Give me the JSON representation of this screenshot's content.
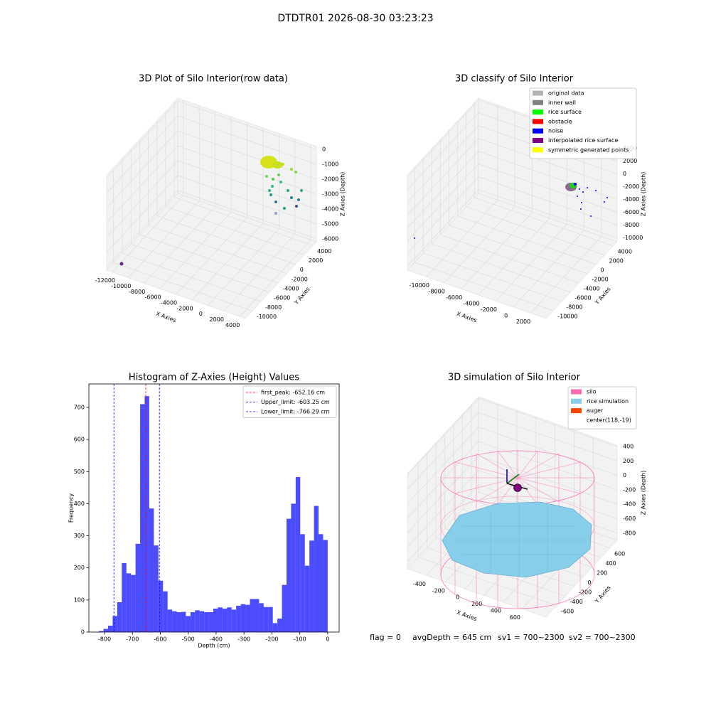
{
  "title": "DTDTR01 2026-08-30 03:23:23",
  "footer": [
    "flag = 0",
    "avgDepth = 645 cm",
    "sv1 = 700~2300",
    "sv2 = 700~2300"
  ],
  "chart_data": [
    {
      "type": "scatter3d",
      "title": "3D Plot of Silo Interior(row data)",
      "xlabel": "X Axies",
      "ylabel": "Y Axies",
      "zlabel": "Z Axies (Depth)",
      "xlim": [
        -12700,
        4700
      ],
      "xticks": [
        -12000,
        -10000,
        -8000,
        -6000,
        -4000,
        -2000,
        0,
        2000,
        4000
      ],
      "ylim": [
        -11600,
        4800
      ],
      "yticks": [
        -10000,
        -8000,
        -6000,
        -4000,
        -2000,
        0,
        2000,
        4000
      ],
      "zlim": [
        -6200,
        200
      ],
      "zticks": [
        -6000,
        -5000,
        -4000,
        -3000,
        -2000,
        -1000,
        0
      ],
      "grid": true
    },
    {
      "type": "scatter3d",
      "title": "3D classify of Silo Interior",
      "xlabel": "X Axies",
      "ylabel": "Y Axies",
      "zlabel": "Z Axies (Depth)",
      "xlim": [
        -12200,
        3800
      ],
      "xticks": [
        -10000,
        -8000,
        -6000,
        -4000,
        -2000,
        0,
        2000
      ],
      "ylim": [
        -11700,
        4900
      ],
      "yticks": [
        -10000,
        -8000,
        -6000,
        -4000,
        -2000,
        0,
        2000,
        4000
      ],
      "zlim": [
        -10600,
        4300
      ],
      "zticks": [
        -10000,
        -8000,
        -6000,
        -4000,
        -2000,
        0,
        2000,
        4000
      ],
      "grid": true,
      "legend": [
        {
          "name": "original data",
          "color": "#b3b3b3"
        },
        {
          "name": "inner wall",
          "color": "#808080"
        },
        {
          "name": "rice surface",
          "color": "#00ff00"
        },
        {
          "name": "obstacle",
          "color": "#ff0000"
        },
        {
          "name": "noise",
          "color": "#0000ff"
        },
        {
          "name": "interpolated rice surface",
          "color": "#800080"
        },
        {
          "name": "symmetric generated points",
          "color": "#ffff00"
        }
      ]
    },
    {
      "type": "histogram",
      "title": "Histogram of Z-Axies (Height) Values",
      "xlabel": "Depth (cm)",
      "ylabel": "Frequency",
      "color": "#0000ff",
      "bins": [
        -820,
        -803.6,
        -787.2,
        -770.8,
        -754.4,
        -738,
        -721.6,
        -705.2,
        -688.8,
        -672.4,
        -656,
        -639.6,
        -623.2,
        -606.8,
        -590.4,
        -574,
        -557.6,
        -541.2,
        -524.8,
        -508.4,
        -492,
        -475.6,
        -459.2,
        -442.8,
        -426.4,
        -410,
        -393.6,
        -377.2,
        -360.8,
        -344.4,
        -328,
        -311.6,
        -295.2,
        -278.8,
        -262.4,
        -246,
        -229.6,
        -213.2,
        -196.8,
        -180.4,
        -164,
        -147.6,
        -131.2,
        -114.8,
        -98.4,
        -82,
        -65.6,
        -49.2,
        -32.8,
        -16.4,
        0
      ],
      "values": [
        3,
        10,
        20,
        50,
        93,
        215,
        183,
        178,
        275,
        710,
        735,
        385,
        270,
        160,
        127,
        70,
        65,
        62,
        63,
        50,
        62,
        68,
        65,
        62,
        62,
        73,
        77,
        73,
        77,
        70,
        82,
        87,
        85,
        103,
        103,
        90,
        78,
        78,
        28,
        42,
        147,
        353,
        400,
        483,
        305,
        207,
        285,
        393,
        305,
        287
      ],
      "xlim": [
        -856,
        41
      ],
      "xticks": [
        -800,
        -700,
        -600,
        -500,
        -400,
        -300,
        -200,
        -100,
        0
      ],
      "ylim": [
        0,
        773
      ],
      "yticks": [
        0,
        100,
        200,
        300,
        400,
        500,
        600,
        700
      ],
      "vlines": [
        {
          "label": "first_peak: -652.16 cm",
          "value": -652.16,
          "color": "#ff0000"
        },
        {
          "label": "Upper_limit: -603.25 cm",
          "value": -603.25,
          "color": "#0000ff"
        },
        {
          "label": "Lower_limit: -766.29 cm",
          "value": -766.29,
          "color": "#0000ff"
        }
      ],
      "legend_position": "upper right"
    },
    {
      "type": "surface3d",
      "title": "3D simulation of Silo Interior",
      "xlabel": "X Axies",
      "ylabel": "Y Axies",
      "zlabel": "Z Axies (Depth)",
      "xlim": [
        -600,
        850
      ],
      "xticks": [
        -400,
        -200,
        0,
        200,
        400,
        600
      ],
      "ylim": [
        -840,
        760
      ],
      "yticks": [
        -600,
        -400,
        -200,
        0,
        200,
        400,
        600
      ],
      "zlim": [
        -900,
        420
      ],
      "zticks": [
        -800,
        -600,
        -400,
        -200,
        0,
        200,
        400
      ],
      "grid": true,
      "legend": [
        {
          "name": "silo",
          "color": "#ff69b4"
        },
        {
          "name": "rice simulation",
          "color": "#87ceeb"
        },
        {
          "name": "auger",
          "color": "#ff4500"
        },
        {
          "name": "center(118,-19)",
          "color": "none"
        }
      ]
    }
  ]
}
